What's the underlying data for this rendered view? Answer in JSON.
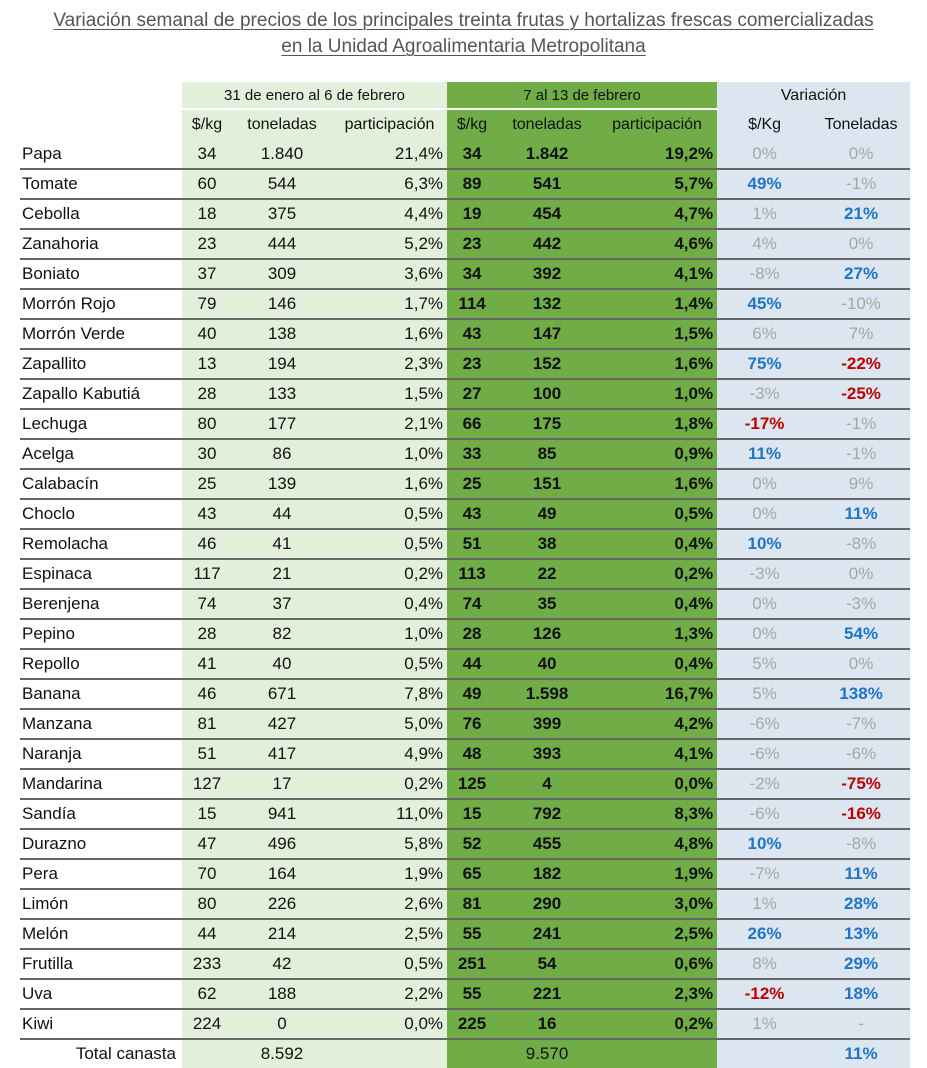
{
  "title": {
    "line1": "Variación semanal de precios de los principales treinta frutas y hortalizas frescas comercializadas",
    "line2": "en la Unidad Agroalimentaria Metropolitana"
  },
  "groups": {
    "week1": "31 de enero al 6 de febrero",
    "week2": "7 al 13 de febrero",
    "variation": "Variación"
  },
  "subheaders": [
    "$/kg",
    "toneladas",
    "participación",
    "$/kg",
    "toneladas",
    "participación",
    "$/Kg",
    "Toneladas"
  ],
  "colors": {
    "week1_bg": "#e2efda",
    "week2_bg": "#70ad47",
    "variation_bg": "#dce6f1",
    "neutral": "#a6a6a6",
    "positive_highlight": "#1f74c7",
    "negative_highlight": "#c00000"
  },
  "rows": [
    {
      "name": "Papa",
      "w1": [
        "34",
        "1.840",
        "21,4%"
      ],
      "w2": [
        "34",
        "1.842",
        "19,2%"
      ],
      "var": [
        [
          "0%",
          "gray"
        ],
        [
          "0%",
          "gray"
        ]
      ]
    },
    {
      "name": "Tomate",
      "w1": [
        "60",
        "544",
        "6,3%"
      ],
      "w2": [
        "89",
        "541",
        "5,7%"
      ],
      "var": [
        [
          "49%",
          "blue"
        ],
        [
          "-1%",
          "gray"
        ]
      ]
    },
    {
      "name": "Cebolla",
      "w1": [
        "18",
        "375",
        "4,4%"
      ],
      "w2": [
        "19",
        "454",
        "4,7%"
      ],
      "var": [
        [
          "1%",
          "gray"
        ],
        [
          "21%",
          "blue"
        ]
      ]
    },
    {
      "name": "Zanahoria",
      "w1": [
        "23",
        "444",
        "5,2%"
      ],
      "w2": [
        "23",
        "442",
        "4,6%"
      ],
      "var": [
        [
          "4%",
          "gray"
        ],
        [
          "0%",
          "gray"
        ]
      ]
    },
    {
      "name": "Boniato",
      "w1": [
        "37",
        "309",
        "3,6%"
      ],
      "w2": [
        "34",
        "392",
        "4,1%"
      ],
      "var": [
        [
          "-8%",
          "gray"
        ],
        [
          "27%",
          "blue"
        ]
      ]
    },
    {
      "name": "Morrón Rojo",
      "w1": [
        "79",
        "146",
        "1,7%"
      ],
      "w2": [
        "114",
        "132",
        "1,4%"
      ],
      "var": [
        [
          "45%",
          "blue"
        ],
        [
          "-10%",
          "gray"
        ]
      ]
    },
    {
      "name": "Morrón Verde",
      "w1": [
        "40",
        "138",
        "1,6%"
      ],
      "w2": [
        "43",
        "147",
        "1,5%"
      ],
      "var": [
        [
          "6%",
          "gray"
        ],
        [
          "7%",
          "gray"
        ]
      ]
    },
    {
      "name": "Zapallito",
      "w1": [
        "13",
        "194",
        "2,3%"
      ],
      "w2": [
        "23",
        "152",
        "1,6%"
      ],
      "var": [
        [
          "75%",
          "blue"
        ],
        [
          "-22%",
          "red"
        ]
      ]
    },
    {
      "name": "Zapallo Kabutiá",
      "w1": [
        "28",
        "133",
        "1,5%"
      ],
      "w2": [
        "27",
        "100",
        "1,0%"
      ],
      "var": [
        [
          "-3%",
          "gray"
        ],
        [
          "-25%",
          "red"
        ]
      ]
    },
    {
      "name": "Lechuga",
      "w1": [
        "80",
        "177",
        "2,1%"
      ],
      "w2": [
        "66",
        "175",
        "1,8%"
      ],
      "var": [
        [
          "-17%",
          "red"
        ],
        [
          "-1%",
          "gray"
        ]
      ]
    },
    {
      "name": "Acelga",
      "w1": [
        "30",
        "86",
        "1,0%"
      ],
      "w2": [
        "33",
        "85",
        "0,9%"
      ],
      "var": [
        [
          "11%",
          "blue"
        ],
        [
          "-1%",
          "gray"
        ]
      ]
    },
    {
      "name": "Calabacín",
      "w1": [
        "25",
        "139",
        "1,6%"
      ],
      "w2": [
        "25",
        "151",
        "1,6%"
      ],
      "var": [
        [
          "0%",
          "gray"
        ],
        [
          "9%",
          "gray"
        ]
      ]
    },
    {
      "name": "Choclo",
      "w1": [
        "43",
        "44",
        "0,5%"
      ],
      "w2": [
        "43",
        "49",
        "0,5%"
      ],
      "var": [
        [
          "0%",
          "gray"
        ],
        [
          "11%",
          "blue"
        ]
      ]
    },
    {
      "name": "Remolacha",
      "w1": [
        "46",
        "41",
        "0,5%"
      ],
      "w2": [
        "51",
        "38",
        "0,4%"
      ],
      "var": [
        [
          "10%",
          "blue"
        ],
        [
          "-8%",
          "gray"
        ]
      ]
    },
    {
      "name": "Espinaca",
      "w1": [
        "117",
        "21",
        "0,2%"
      ],
      "w2": [
        "113",
        "22",
        "0,2%"
      ],
      "var": [
        [
          "-3%",
          "gray"
        ],
        [
          "0%",
          "gray"
        ]
      ]
    },
    {
      "name": "Berenjena",
      "w1": [
        "74",
        "37",
        "0,4%"
      ],
      "w2": [
        "74",
        "35",
        "0,4%"
      ],
      "var": [
        [
          "0%",
          "gray"
        ],
        [
          "-3%",
          "gray"
        ]
      ]
    },
    {
      "name": "Pepino",
      "w1": [
        "28",
        "82",
        "1,0%"
      ],
      "w2": [
        "28",
        "126",
        "1,3%"
      ],
      "var": [
        [
          "0%",
          "gray"
        ],
        [
          "54%",
          "blue"
        ]
      ]
    },
    {
      "name": "Repollo",
      "w1": [
        "41",
        "40",
        "0,5%"
      ],
      "w2": [
        "44",
        "40",
        "0,4%"
      ],
      "var": [
        [
          "5%",
          "gray"
        ],
        [
          "0%",
          "gray"
        ]
      ]
    },
    {
      "name": "Banana",
      "w1": [
        "46",
        "671",
        "7,8%"
      ],
      "w2": [
        "49",
        "1.598",
        "16,7%"
      ],
      "var": [
        [
          "5%",
          "gray"
        ],
        [
          "138%",
          "blue"
        ]
      ]
    },
    {
      "name": "Manzana",
      "w1": [
        "81",
        "427",
        "5,0%"
      ],
      "w2": [
        "76",
        "399",
        "4,2%"
      ],
      "var": [
        [
          "-6%",
          "gray"
        ],
        [
          "-7%",
          "gray"
        ]
      ]
    },
    {
      "name": "Naranja",
      "w1": [
        "51",
        "417",
        "4,9%"
      ],
      "w2": [
        "48",
        "393",
        "4,1%"
      ],
      "var": [
        [
          "-6%",
          "gray"
        ],
        [
          "-6%",
          "gray"
        ]
      ]
    },
    {
      "name": "Mandarina",
      "w1": [
        "127",
        "17",
        "0,2%"
      ],
      "w2": [
        "125",
        "4",
        "0,0%"
      ],
      "var": [
        [
          "-2%",
          "gray"
        ],
        [
          "-75%",
          "red"
        ]
      ]
    },
    {
      "name": "Sandía",
      "w1": [
        "15",
        "941",
        "11,0%"
      ],
      "w2": [
        "15",
        "792",
        "8,3%"
      ],
      "var": [
        [
          "-6%",
          "gray"
        ],
        [
          "-16%",
          "red"
        ]
      ]
    },
    {
      "name": "Durazno",
      "w1": [
        "47",
        "496",
        "5,8%"
      ],
      "w2": [
        "52",
        "455",
        "4,8%"
      ],
      "var": [
        [
          "10%",
          "blue"
        ],
        [
          "-8%",
          "gray"
        ]
      ]
    },
    {
      "name": "Pera",
      "w1": [
        "70",
        "164",
        "1,9%"
      ],
      "w2": [
        "65",
        "182",
        "1,9%"
      ],
      "var": [
        [
          "-7%",
          "gray"
        ],
        [
          "11%",
          "blue"
        ]
      ]
    },
    {
      "name": "Limón",
      "w1": [
        "80",
        "226",
        "2,6%"
      ],
      "w2": [
        "81",
        "290",
        "3,0%"
      ],
      "var": [
        [
          "1%",
          "gray"
        ],
        [
          "28%",
          "blue"
        ]
      ]
    },
    {
      "name": "Melón",
      "w1": [
        "44",
        "214",
        "2,5%"
      ],
      "w2": [
        "55",
        "241",
        "2,5%"
      ],
      "var": [
        [
          "26%",
          "blue"
        ],
        [
          "13%",
          "blue"
        ]
      ]
    },
    {
      "name": "Frutilla",
      "w1": [
        "233",
        "42",
        "0,5%"
      ],
      "w2": [
        "251",
        "54",
        "0,6%"
      ],
      "var": [
        [
          "8%",
          "gray"
        ],
        [
          "29%",
          "blue"
        ]
      ]
    },
    {
      "name": "Uva",
      "w1": [
        "62",
        "188",
        "2,2%"
      ],
      "w2": [
        "55",
        "221",
        "2,3%"
      ],
      "var": [
        [
          "-12%",
          "red"
        ],
        [
          "18%",
          "blue"
        ]
      ]
    },
    {
      "name": "Kiwi",
      "w1": [
        "224",
        "0",
        "0,0%"
      ],
      "w2": [
        "225",
        "16",
        "0,2%"
      ],
      "var": [
        [
          "1%",
          "gray"
        ],
        [
          "-",
          "gray"
        ]
      ]
    }
  ],
  "total": {
    "label": "Total canasta",
    "week1_tons": "8.592",
    "week2_tons": "9.570",
    "variation_tons": "11%"
  }
}
